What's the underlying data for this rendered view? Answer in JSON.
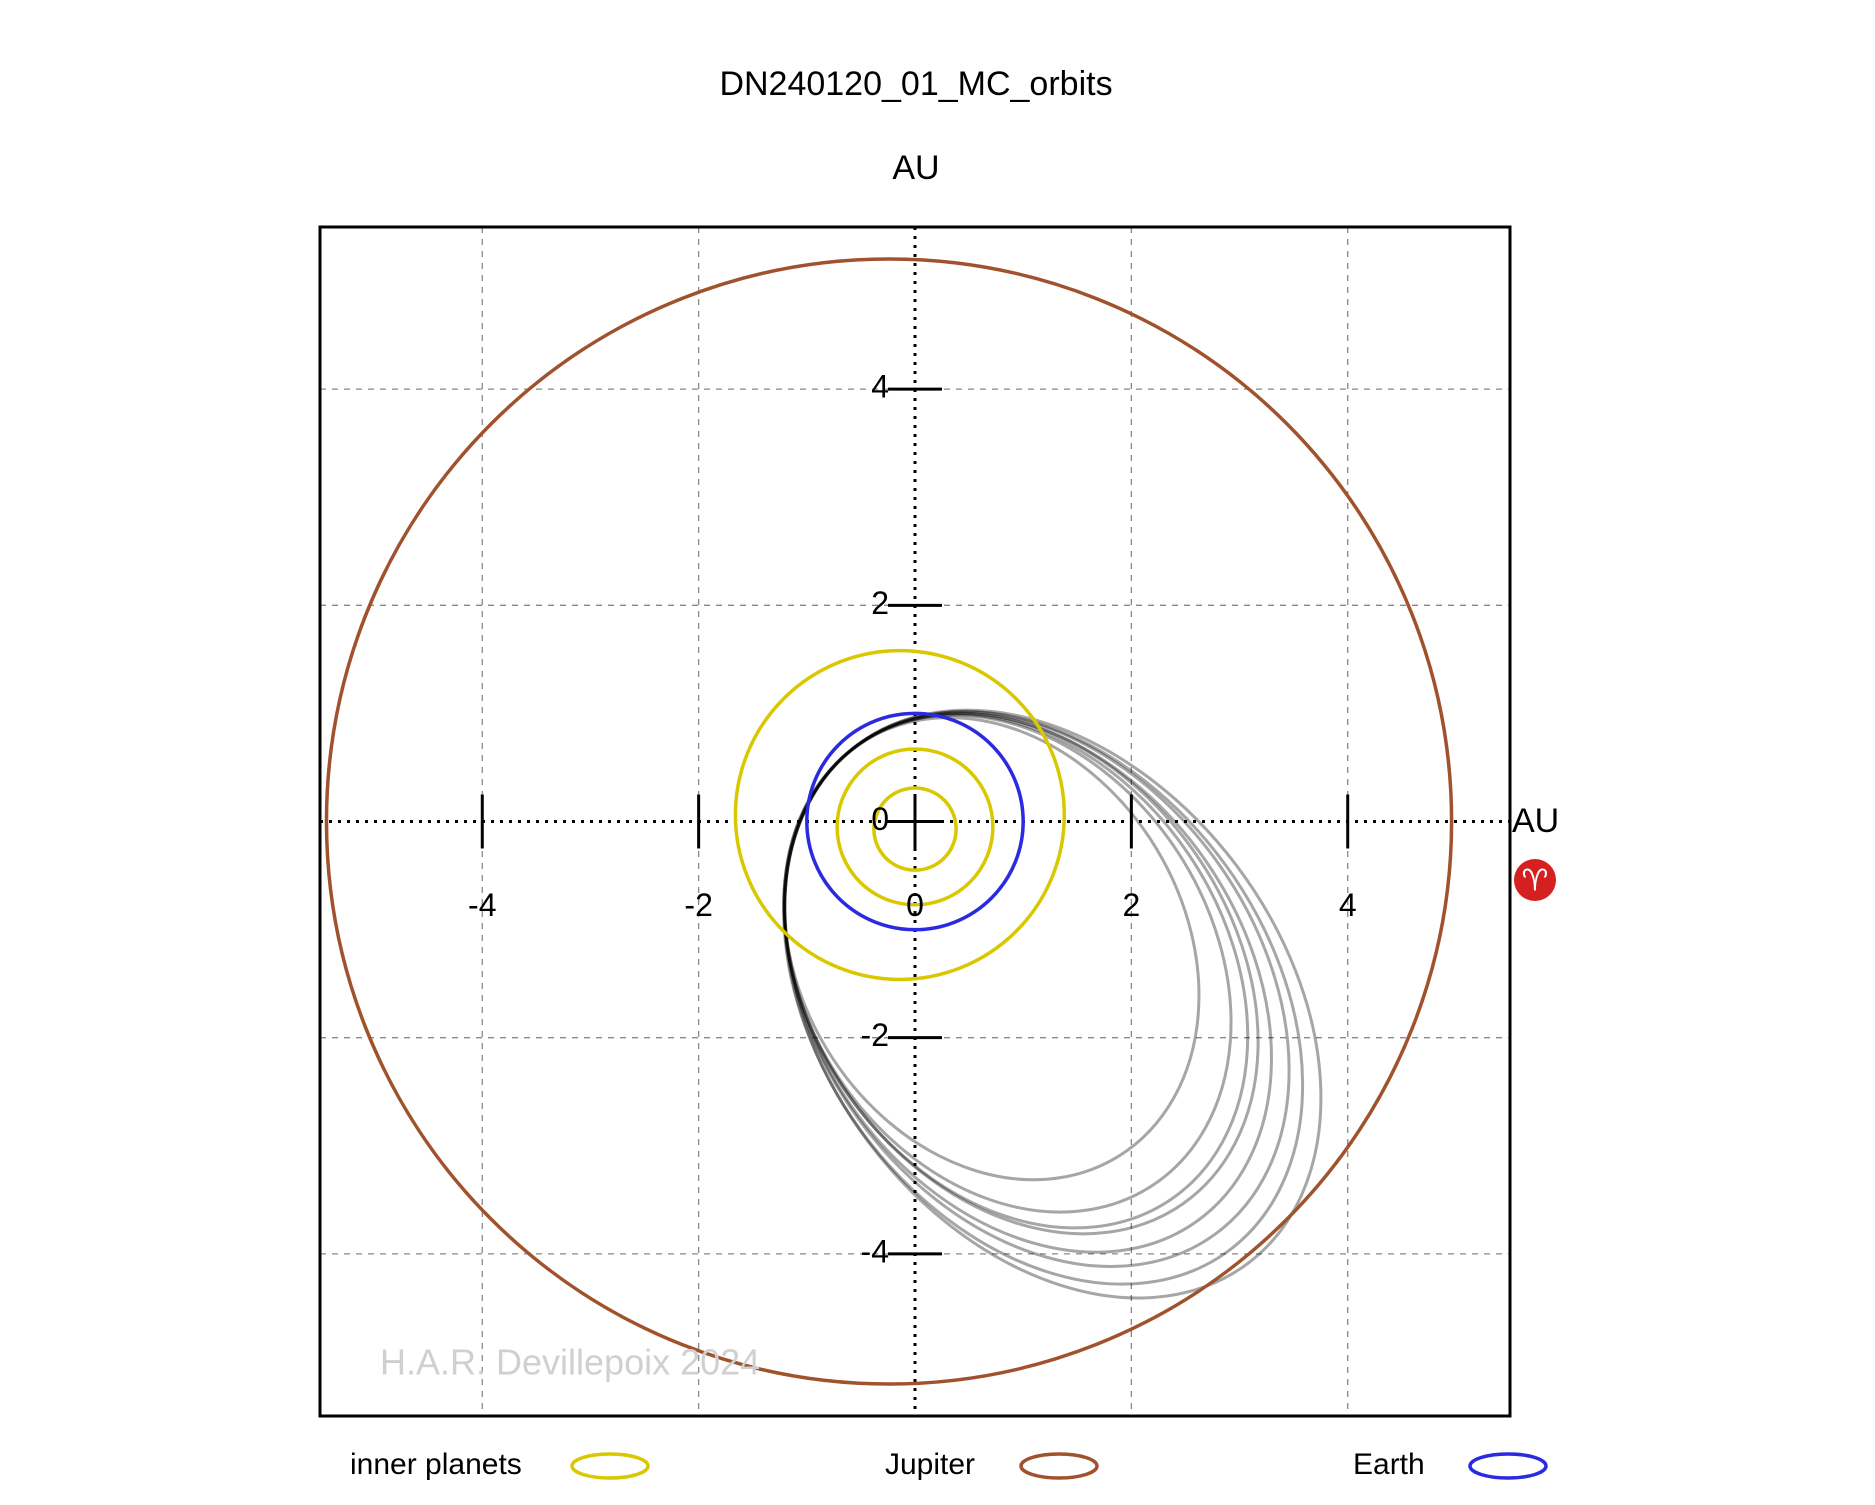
{
  "chart_data": {
    "type": "orbit",
    "title": "DN240120_01_MC_orbits",
    "y_axis_label": "AU",
    "x_axis_label": "AU",
    "vernal_equinox_symbol": "♈",
    "watermark": "H.A.R. Devillepoix 2024",
    "xlim": [
      -5.5,
      5.5
    ],
    "ylim": [
      -5.5,
      5.5
    ],
    "xticks": [
      -4,
      -2,
      0,
      2,
      4
    ],
    "yticks": [
      -4,
      -2,
      0,
      2,
      4
    ],
    "grid": true,
    "series": [
      {
        "name": "inner planets",
        "color": "#d9c800",
        "orbits": [
          {
            "center": [
              0,
              -0.07
            ],
            "radius": 0.38
          },
          {
            "center": [
              0,
              -0.05
            ],
            "radius": 0.72
          },
          {
            "center": [
              -0.14,
              0.06
            ],
            "radius": 1.52
          }
        ]
      },
      {
        "name": "Jupiter",
        "color": "#a0522d",
        "orbits": [
          {
            "center": [
              -0.24,
              0
            ],
            "radius": 5.2
          }
        ]
      },
      {
        "name": "Earth",
        "color": "#2a2ae0",
        "orbits": [
          {
            "center": [
              0,
              0
            ],
            "radius": 1.0
          }
        ]
      }
    ],
    "meteoroid_color": "#000000",
    "meteoroid_orbits": [
      {
        "a": 2.6,
        "e": 0.66,
        "omega": 125
      },
      {
        "a": 2.55,
        "e": 0.655,
        "omega": 124
      },
      {
        "a": 2.7,
        "e": 0.675,
        "omega": 125
      },
      {
        "a": 2.8,
        "e": 0.685,
        "omega": 126
      },
      {
        "a": 2.9,
        "e": 0.695,
        "omega": 126
      },
      {
        "a": 2.45,
        "e": 0.64,
        "omega": 123
      },
      {
        "a": 2.25,
        "e": 0.61,
        "omega": 121
      },
      {
        "a": 3.0,
        "e": 0.705,
        "omega": 127
      }
    ]
  }
}
